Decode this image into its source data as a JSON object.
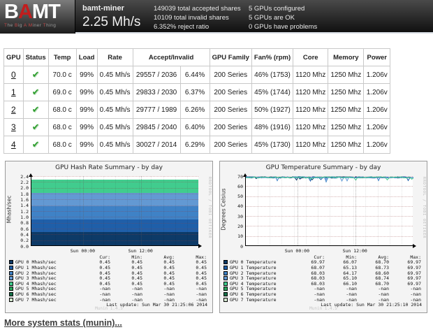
{
  "header": {
    "logo": {
      "word_pre": "B",
      "word_accent": "A",
      "word_post": "MT",
      "tagline": "The Big A Miner Thing"
    },
    "miner_name": "bamt-miner",
    "hashrate": "2.25 Mh/s",
    "share_stats": [
      "149039 total accepted shares",
      "10109 total invalid shares",
      "6.352% reject ratio"
    ],
    "gpu_stats": [
      "5 GPUs configured",
      "5 GPUs are OK",
      "0 GPUs have problems"
    ]
  },
  "gpu_table": {
    "columns": [
      "GPU",
      "Status",
      "Temp",
      "Load",
      "Rate",
      "Accept/Invalid",
      "GPU Family",
      "Fan% (rpm)",
      "Core",
      "Memory",
      "Power"
    ],
    "status_ok_glyph": "✔",
    "rows": [
      {
        "gpu": "0",
        "status": "ok",
        "temp": "70.0 c",
        "load": "99%",
        "rate": "0.45 Mh/s",
        "accept_invalid": "29557 / 2036",
        "reject_pct": "6.44%",
        "family": "200 Series",
        "fan": "46% (1753)",
        "core": "1120 Mhz",
        "memory": "1250 Mhz",
        "power": "1.206v"
      },
      {
        "gpu": "1",
        "status": "ok",
        "temp": "69.0 c",
        "load": "99%",
        "rate": "0.45 Mh/s",
        "accept_invalid": "29833 / 2030",
        "reject_pct": "6.37%",
        "family": "200 Series",
        "fan": "45% (1744)",
        "core": "1120 Mhz",
        "memory": "1250 Mhz",
        "power": "1.206v"
      },
      {
        "gpu": "2",
        "status": "ok",
        "temp": "68.0 c",
        "load": "99%",
        "rate": "0.45 Mh/s",
        "accept_invalid": "29777 / 1989",
        "reject_pct": "6.26%",
        "family": "200 Series",
        "fan": "50% (1927)",
        "core": "1120 Mhz",
        "memory": "1250 Mhz",
        "power": "1.206v"
      },
      {
        "gpu": "3",
        "status": "ok",
        "temp": "68.0 c",
        "load": "99%",
        "rate": "0.45 Mh/s",
        "accept_invalid": "29845 / 2040",
        "reject_pct": "6.40%",
        "family": "200 Series",
        "fan": "48% (1916)",
        "core": "1120 Mhz",
        "memory": "1250 Mhz",
        "power": "1.206v"
      },
      {
        "gpu": "4",
        "status": "ok",
        "temp": "68.0 c",
        "load": "99%",
        "rate": "0.45 Mh/s",
        "accept_invalid": "30027 / 2014",
        "reject_pct": "6.29%",
        "family": "200 Series",
        "fan": "45% (1730)",
        "core": "1120 Mhz",
        "memory": "1250 Mhz",
        "power": "1.206v"
      }
    ]
  },
  "chart_data": [
    {
      "type": "area",
      "stacked": true,
      "title": "GPU Hash Rate Summary - by day",
      "ylabel": "Mhash/sec",
      "xlabel": "",
      "ylim": [
        0,
        2.4
      ],
      "y_tick_step": 0.2,
      "grid": true,
      "legend_position": "bottom",
      "x_ticks": [
        {
          "label": "Sun 00:00",
          "pos": 0.31
        },
        {
          "label": "Sun 12:00",
          "pos": 0.655
        }
      ],
      "legend_headers": [
        "Cur:",
        "Min:",
        "Avg:",
        "Max:"
      ],
      "series": [
        {
          "name": "GPU 0 Mhash/sec",
          "color": "#0d3a67",
          "cur": "0.45",
          "min": "0.45",
          "avg": "0.45",
          "max": "0.45"
        },
        {
          "name": "GPU 1 Mhash/sec",
          "color": "#1f5fa9",
          "cur": "0.45",
          "min": "0.45",
          "avg": "0.45",
          "max": "0.45"
        },
        {
          "name": "GPU 2 Mhash/sec",
          "color": "#3f82c6",
          "cur": "0.45",
          "min": "0.45",
          "avg": "0.45",
          "max": "0.45"
        },
        {
          "name": "GPU 3 Mhash/sec",
          "color": "#6399d3",
          "cur": "0.45",
          "min": "0.45",
          "avg": "0.45",
          "max": "0.45"
        },
        {
          "name": "GPU 4 Mhash/sec",
          "color": "#41cc8e",
          "cur": "0.45",
          "min": "0.45",
          "avg": "0.45",
          "max": "0.45"
        },
        {
          "name": "GPU 5 Mhash/sec",
          "color": "#2ba55c",
          "cur": "-nan",
          "min": "-nan",
          "avg": "-nan",
          "max": "-nan"
        },
        {
          "name": "GPU 6 Mhash/sec",
          "color": "#17714a",
          "cur": "-nan",
          "min": "-nan",
          "avg": "-nan",
          "max": "-nan"
        },
        {
          "name": "GPU 7 Mhash/sec",
          "color": "#d4e8d0",
          "cur": "-nan",
          "min": "-nan",
          "avg": "-nan",
          "max": "-nan"
        }
      ],
      "last_update": "Last update: Sun Mar 30 21:25:06 2014",
      "generator_watermark": "Munin 1.4.5",
      "rrdtool_watermark": "RRDTOOL / TOBI OETIKER"
    },
    {
      "type": "line",
      "stacked": false,
      "title": "GPU Temperature Summary - by day",
      "ylabel": "Degrees Celsius",
      "xlabel": "",
      "ylim": [
        0,
        70
      ],
      "y_tick_step": 10,
      "grid": true,
      "legend_position": "bottom",
      "x_ticks": [
        {
          "label": "Sun 00:00",
          "pos": 0.31
        },
        {
          "label": "Sun 12:00",
          "pos": 0.655
        }
      ],
      "legend_headers": [
        "Cur:",
        "Min:",
        "Avg:",
        "Max:"
      ],
      "series": [
        {
          "name": "GPU 0 Temperature",
          "color": "#0d3a67",
          "cur": "69.97",
          "min": "66.07",
          "avg": "68.70",
          "max": "69.97"
        },
        {
          "name": "GPU 1 Temperature",
          "color": "#1f5fa9",
          "cur": "68.07",
          "min": "65.13",
          "avg": "68.73",
          "max": "69.97"
        },
        {
          "name": "GPU 2 Temperature",
          "color": "#3f82c6",
          "cur": "68.03",
          "min": "64.17",
          "avg": "68.60",
          "max": "69.97"
        },
        {
          "name": "GPU 3 Temperature",
          "color": "#6399d3",
          "cur": "68.03",
          "min": "65.10",
          "avg": "68.74",
          "max": "69.97"
        },
        {
          "name": "GPU 4 Temperature",
          "color": "#41cc8e",
          "cur": "68.03",
          "min": "66.10",
          "avg": "68.70",
          "max": "69.97"
        },
        {
          "name": "GPU 5 Temperature",
          "color": "#2ba55c",
          "cur": "-nan",
          "min": "-nan",
          "avg": "-nan",
          "max": "-nan"
        },
        {
          "name": "GPU 6 Temperature",
          "color": "#17714a",
          "cur": "-nan",
          "min": "-nan",
          "avg": "-nan",
          "max": "-nan"
        },
        {
          "name": "GPU 7 Temperature",
          "color": "#d4e8d0",
          "cur": "-nan",
          "min": "-nan",
          "avg": "-nan",
          "max": "-nan"
        }
      ],
      "last_update": "Last update: Sun Mar 30 21:25:10 2014",
      "generator_watermark": "Munin 1.4.5",
      "rrdtool_watermark": "RRDTOOL / TOBI OETIKER"
    }
  ],
  "footer": {
    "more_stats_link": "More system stats (munin)..."
  }
}
